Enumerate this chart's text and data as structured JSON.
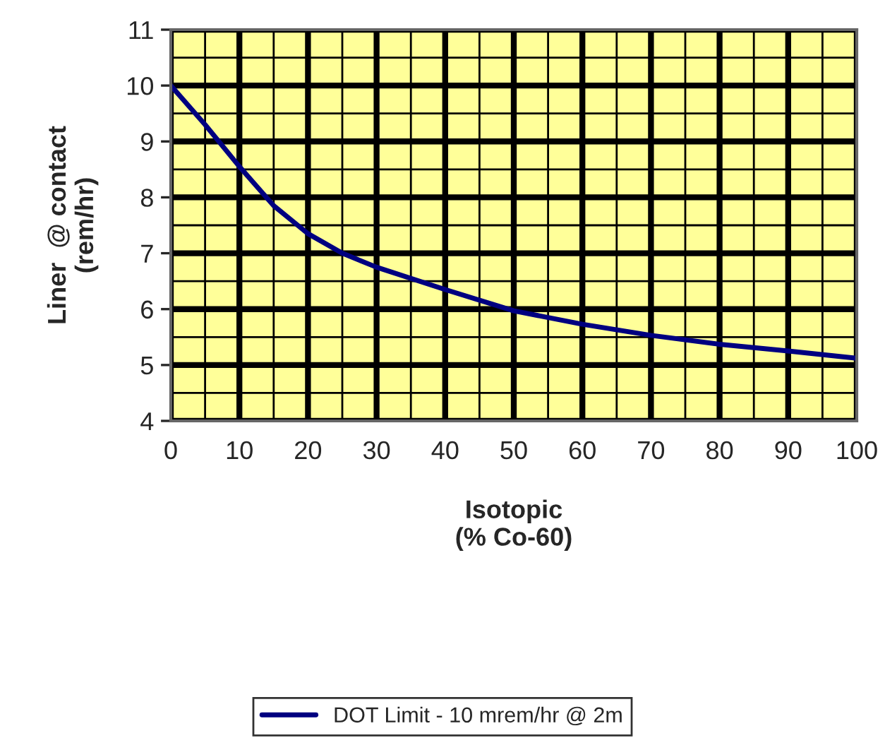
{
  "chart_data": {
    "type": "line",
    "xlabel": "Isotopic\n(% Co-60)",
    "ylabel": "Liner  @ contact\n(rem/hr)",
    "x": [
      0,
      5,
      10,
      15,
      20,
      25,
      30,
      40,
      50,
      60,
      70,
      80,
      90,
      100
    ],
    "series": [
      {
        "name": "DOT Limit - 10 mrem/hr @ 2m",
        "color": "#000080",
        "values": [
          10,
          9.3,
          8.55,
          7.85,
          7.35,
          7.0,
          6.75,
          6.35,
          5.97,
          5.73,
          5.53,
          5.37,
          5.25,
          5.12
        ]
      }
    ],
    "xlim": [
      0,
      100
    ],
    "xticks": [
      0,
      10,
      20,
      30,
      40,
      50,
      60,
      70,
      80,
      90,
      100
    ],
    "ylim": [
      4,
      11
    ],
    "yticks": [
      4,
      5,
      6,
      7,
      8,
      9,
      10,
      11
    ],
    "grid": true,
    "legend": "bottom",
    "marker": "none",
    "line_style": "solid"
  }
}
